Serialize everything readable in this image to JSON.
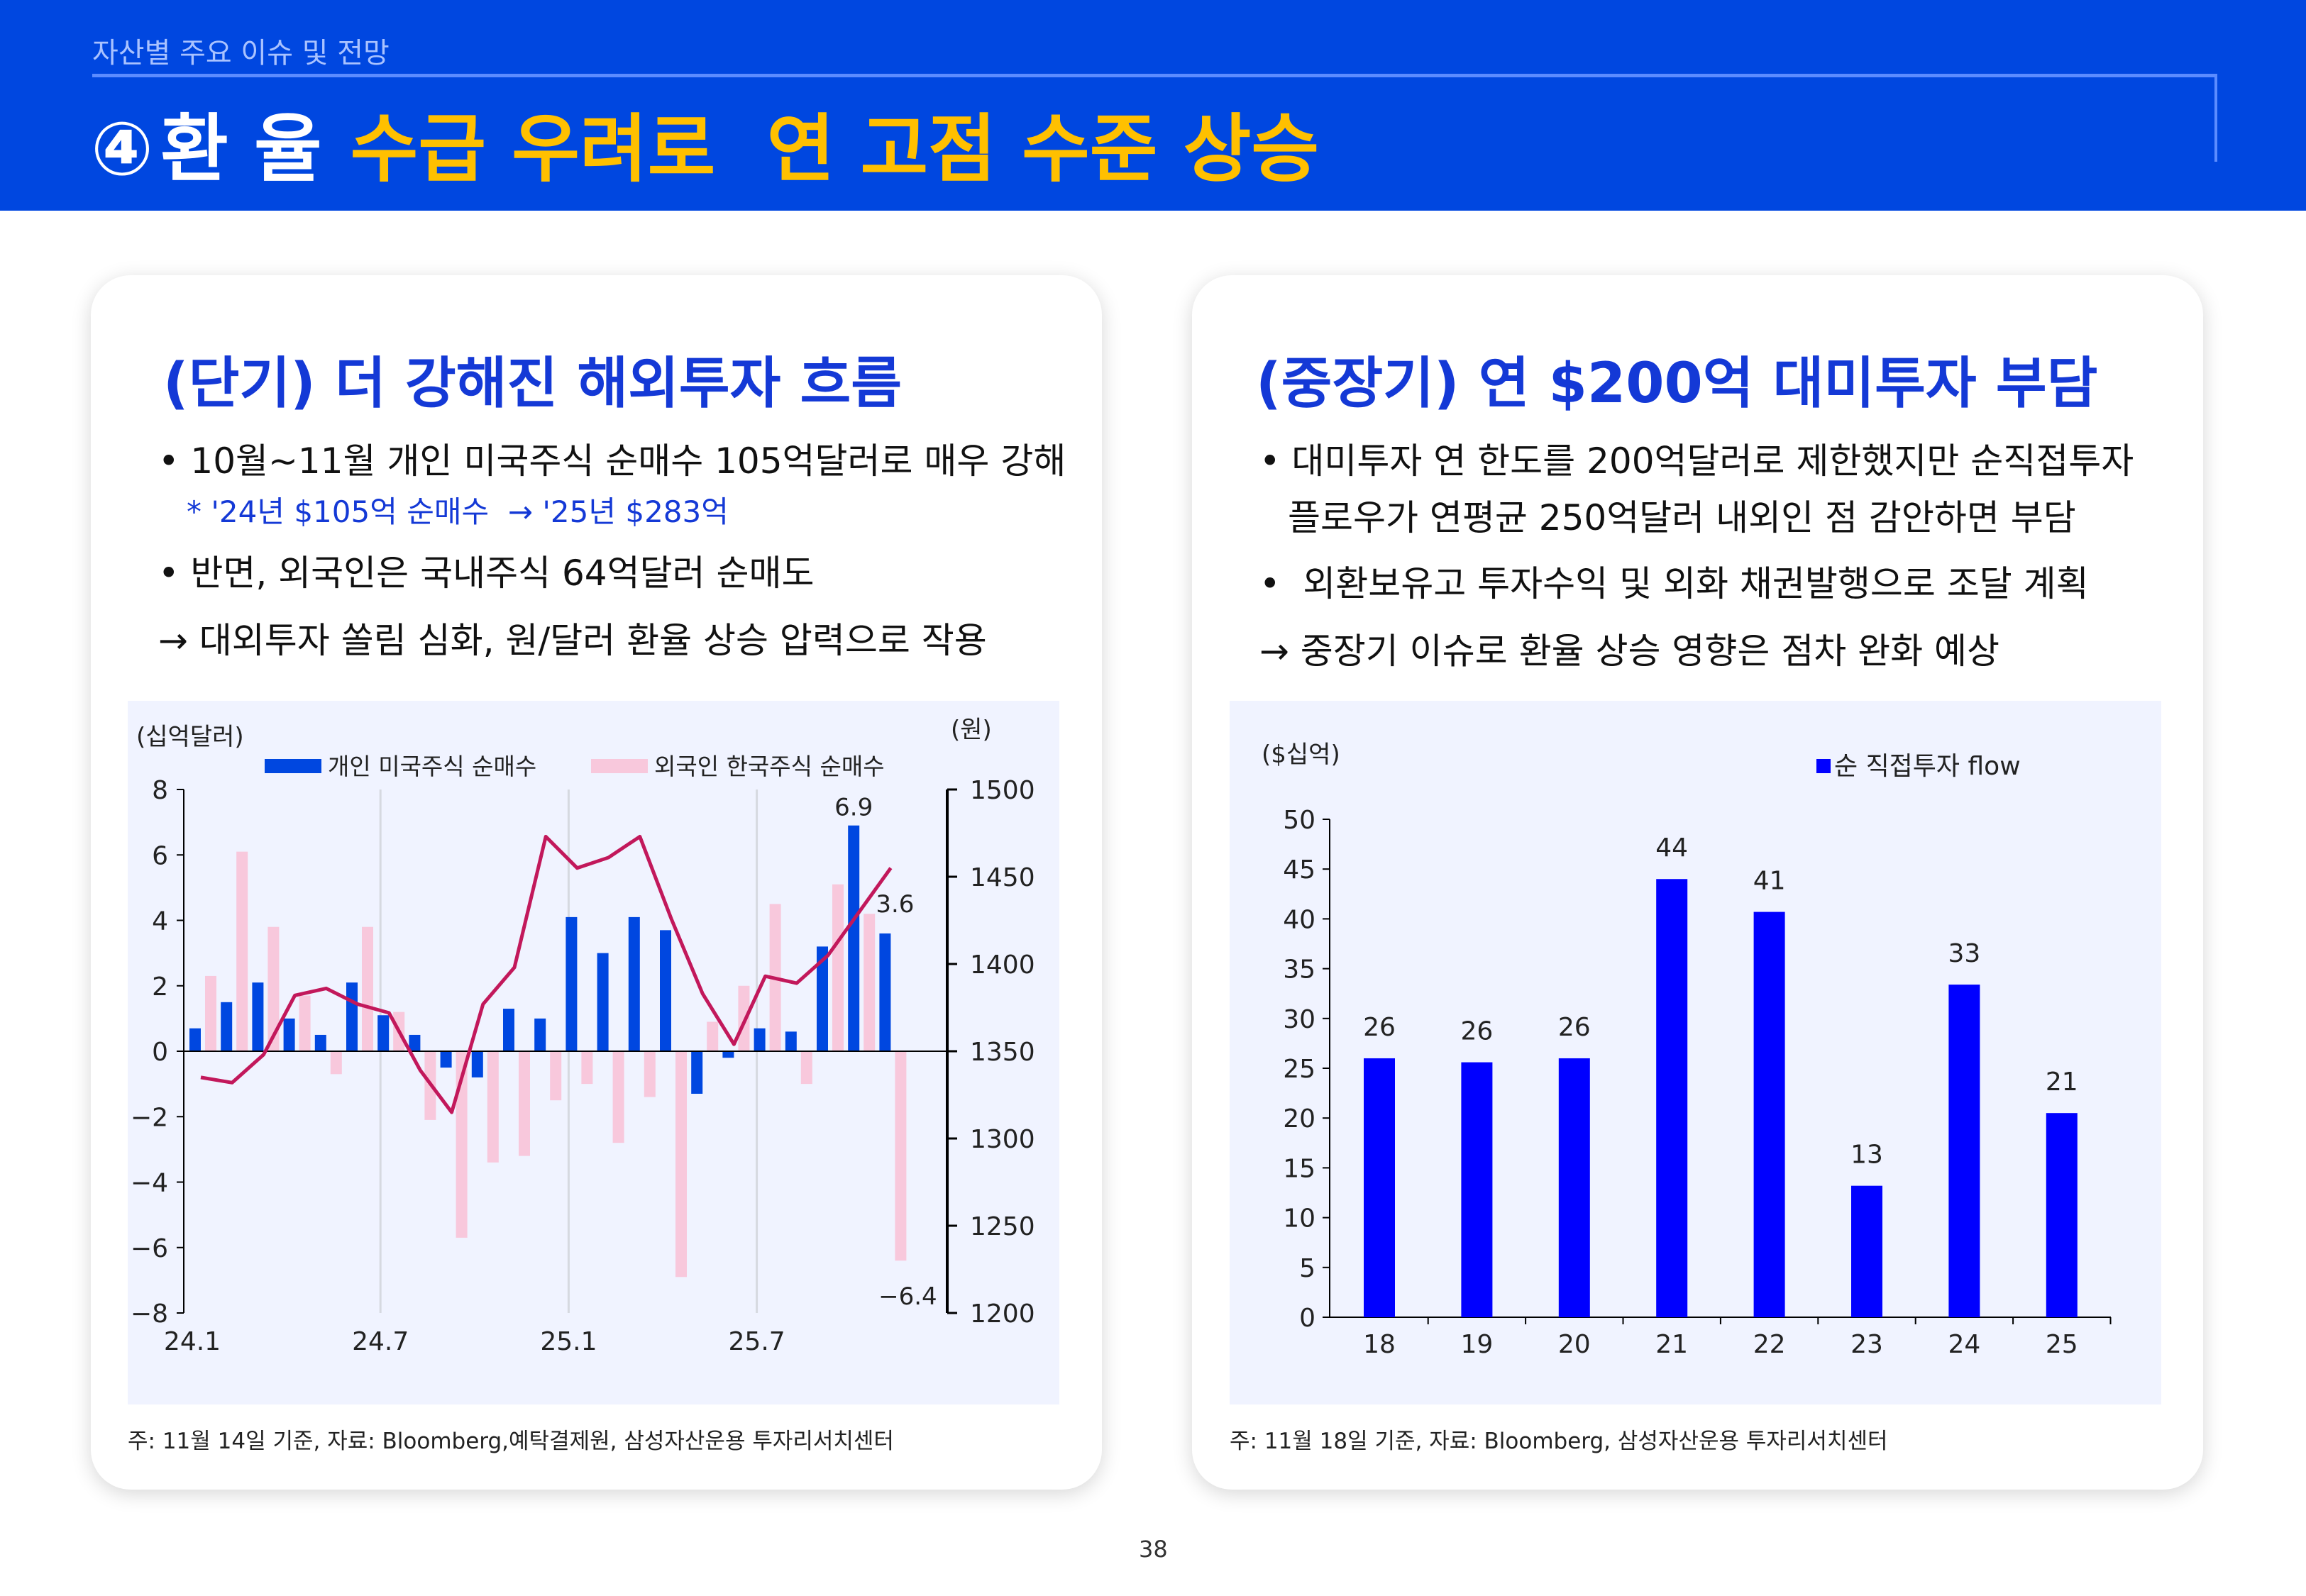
{
  "header": {
    "section": "자산별 주요 이슈 및 전망",
    "number": "④",
    "topic": "환 율",
    "headline": "수급 우려로  연 고점 수준 상승"
  },
  "left": {
    "title": "(단기) 더 강해진 해외투자 흐름",
    "bullets": [
      "• 10월~11월 개인 미국주식 순매수 105억달러로 매우 강해",
      "• 반면, 외국인은 국내주식 64억달러 순매도",
      "→ 대외투자 쏠림 심화, 원/달러 환율 상승 압력으로 작용"
    ],
    "note": "* '24년 $105억 순매수  → '25년 $283억",
    "footnote": "주: 11월 14일 기준, 자료: Bloomberg,예탁결제원,  삼성자산운용 투자리서치센터"
  },
  "right": {
    "title": "(중장기) 연 $200억 대미투자 부담",
    "bullets": [
      "• 대미투자 연 한도를 200억달러로 제한했지만 순직접투자",
      "플로우가 연평균 250억달러 내외인 점 감안하면 부담",
      "•  외환보유고 투자수익 및 외화 채권발행으로 조달 계획",
      "→ 중장기 이슈로 환율 상승 영향은 점차 완화 예상"
    ],
    "footnote": "주: 11월 18일 기준, 자료: Bloomberg, 삼성자산운용 투자리서치센터"
  },
  "page_number": "38",
  "colors": {
    "header": "#0047e0",
    "headline": "#ffc000",
    "title": "#1439d6",
    "blue_bar": "#0047e0",
    "pink_bar": "#f8c8dc",
    "fx_line": "#c2185b",
    "right_bar": "#0000ff"
  },
  "chart_data": [
    {
      "type": "bar+line",
      "left_unit": "(십억달러)",
      "right_unit": "(원)",
      "ylim": [
        -8,
        8
      ],
      "yticks": [
        8,
        6,
        4,
        2,
        0,
        -2,
        -4,
        -6,
        -8
      ],
      "y2lim": [
        1200,
        1500
      ],
      "y2ticks": [
        1500,
        1450,
        1400,
        1350,
        1300,
        1250,
        1200
      ],
      "categories": [
        "24.1",
        "24.2",
        "24.3",
        "24.4",
        "24.5",
        "24.6",
        "24.7",
        "24.8",
        "24.9",
        "24.10",
        "24.11",
        "24.12",
        "25.1",
        "25.2",
        "25.3",
        "25.4",
        "25.5",
        "25.6",
        "25.7",
        "25.8",
        "25.9",
        "25.10",
        "25.11"
      ],
      "xtick_labels": [
        "24.1",
        "24.7",
        "25.1",
        "25.7"
      ],
      "series": [
        {
          "name": "개인 미국주식 순매수",
          "values": [
            0.7,
            1.5,
            2.1,
            1.0,
            0.5,
            2.1,
            1.1,
            0.5,
            -0.5,
            -0.8,
            1.3,
            1.0,
            4.1,
            3.0,
            4.1,
            3.7,
            -1.3,
            -0.2,
            0.7,
            0.6,
            3.2,
            6.9,
            3.6
          ]
        },
        {
          "name": "외국인 한국주식 순매수",
          "values": [
            2.3,
            6.1,
            3.8,
            1.7,
            -0.7,
            3.8,
            1.2,
            -2.1,
            -5.7,
            -3.4,
            -3.2,
            -1.5,
            -1.0,
            -2.8,
            -1.4,
            -6.9,
            0.9,
            2.0,
            4.5,
            -1.0,
            5.1,
            4.2,
            -6.4
          ]
        },
        {
          "axis": "right",
          "values": [
            1335,
            1332,
            1348,
            1382,
            1386,
            1377,
            1372,
            1339,
            1315,
            1377,
            1398,
            1473,
            1455,
            1461,
            1473,
            1426,
            1383,
            1354,
            1393,
            1389,
            1405,
            1430,
            1455
          ]
        }
      ],
      "data_labels": {
        "max": "6.9",
        "last": "3.6",
        "min": "-6.4"
      },
      "grid": "vertical at 24.7, 25.1, 25.7"
    },
    {
      "type": "bar",
      "unit": "($십억)",
      "legend": "순 직접투자 flow",
      "categories": [
        "18",
        "19",
        "20",
        "21",
        "22",
        "23",
        "24",
        "25"
      ],
      "values": [
        26,
        25.6,
        26,
        44,
        40.7,
        13.2,
        33.4,
        20.5
      ],
      "labels": [
        "26",
        "26",
        "26",
        "44",
        "41",
        "13",
        "33",
        "21"
      ],
      "ylim": [
        0,
        50
      ],
      "yticks": [
        0,
        5,
        10,
        15,
        20,
        25,
        30,
        35,
        40,
        45,
        50
      ],
      "grid": false,
      "legend_position": "top-right"
    }
  ]
}
